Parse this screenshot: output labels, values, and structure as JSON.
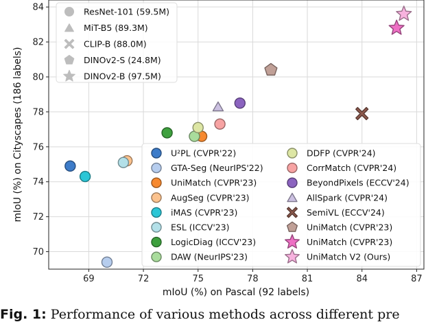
{
  "chart_data": {
    "type": "scatter",
    "xlabel": "mIoU (%) on Pascal (92 labels)",
    "ylabel": "mIoU (%) on Cityscapes (186 labels)",
    "xlim": [
      66.8,
      87.4
    ],
    "ylim": [
      69.0,
      84.4
    ],
    "xticks": [
      69,
      72,
      75,
      78,
      81,
      84,
      87
    ],
    "yticks": [
      70,
      72,
      74,
      76,
      78,
      80,
      82,
      84
    ],
    "grid": true,
    "legend_backbones": [
      {
        "label": "ResNet-101 (59.5M)",
        "marker": "circle"
      },
      {
        "label": "MiT-B5 (89.3M)",
        "marker": "triangle"
      },
      {
        "label": "CLIP-B (88.0M)",
        "marker": "x"
      },
      {
        "label": "DINOv2-S (24.8M)",
        "marker": "pentagon"
      },
      {
        "label": "DINOv2-B (97.5M)",
        "marker": "star"
      }
    ],
    "legend_methods": [
      {
        "label": "U²PL (CVPR'22)",
        "color": "#3d7cc9",
        "marker": "circle"
      },
      {
        "label": "GTA-Seg (NeurIPS'22)",
        "color": "#b6cdee",
        "marker": "circle"
      },
      {
        "label": "UniMatch (CVPR'23)",
        "color": "#f7892f",
        "marker": "circle"
      },
      {
        "label": "AugSeg (CVPR'23)",
        "color": "#fbc28e",
        "marker": "circle"
      },
      {
        "label": "iMAS (CVPR'23)",
        "color": "#2cc6d6",
        "marker": "circle"
      },
      {
        "label": "ESL (ICCV'23)",
        "color": "#b3e0e8",
        "marker": "circle"
      },
      {
        "label": "LogicDiag (ICCV'23)",
        "color": "#3ea03e",
        "marker": "circle"
      },
      {
        "label": "DAW (NeurIPS'23)",
        "color": "#a9dc9c",
        "marker": "circle"
      },
      {
        "label": "DDFP (CVPR'24)",
        "color": "#dde6a4",
        "marker": "circle"
      },
      {
        "label": "CorrMatch (CVPR'24)",
        "color": "#f7a3a3",
        "marker": "circle"
      },
      {
        "label": "BeyondPixels (ECCV'24)",
        "color": "#8b63bf",
        "marker": "circle"
      },
      {
        "label": "AllSpark (CVPR'24)",
        "color": "#cbc0e1",
        "marker": "triangle"
      },
      {
        "label": "SemiVL (ECCV'24)",
        "color": "#8e5a4e",
        "marker": "x"
      },
      {
        "label": "UniMatch (CVPR'23)",
        "color": "#c0a097",
        "marker": "pentagon"
      },
      {
        "label": "UniMatch (CVPR'23)",
        "color": "#ee6fc4",
        "marker": "star"
      },
      {
        "label": "UniMatch V2 (Ours)",
        "color": "#f7b2de",
        "marker": "star"
      }
    ],
    "points": [
      {
        "name": "U²PL",
        "x": 67.98,
        "y": 74.9,
        "color": "#3d7cc9",
        "marker": "circle"
      },
      {
        "name": "GTA-Seg",
        "x": 70.0,
        "y": 69.4,
        "color": "#b6cdee",
        "marker": "circle"
      },
      {
        "name": "UniMatch",
        "x": 75.2,
        "y": 76.6,
        "color": "#f7892f",
        "marker": "circle"
      },
      {
        "name": "AugSeg",
        "x": 71.1,
        "y": 75.2,
        "color": "#fbc28e",
        "marker": "circle"
      },
      {
        "name": "iMAS",
        "x": 68.8,
        "y": 74.3,
        "color": "#2cc6d6",
        "marker": "circle"
      },
      {
        "name": "ESL",
        "x": 70.9,
        "y": 75.1,
        "color": "#b3e0e8",
        "marker": "circle"
      },
      {
        "name": "LogicDiag",
        "x": 73.3,
        "y": 76.8,
        "color": "#3ea03e",
        "marker": "circle"
      },
      {
        "name": "DAW",
        "x": 74.8,
        "y": 76.6,
        "color": "#a9dc9c",
        "marker": "circle"
      },
      {
        "name": "DDFP",
        "x": 75.0,
        "y": 77.1,
        "color": "#dde6a4",
        "marker": "circle"
      },
      {
        "name": "CorrMatch",
        "x": 76.2,
        "y": 77.3,
        "color": "#f7a3a3",
        "marker": "circle"
      },
      {
        "name": "BeyondPixels",
        "x": 77.3,
        "y": 78.5,
        "color": "#8b63bf",
        "marker": "circle"
      },
      {
        "name": "AllSpark",
        "x": 76.1,
        "y": 78.3,
        "color": "#cbc0e1",
        "marker": "triangle"
      },
      {
        "name": "SemiVL",
        "x": 84.0,
        "y": 77.9,
        "color": "#8e5a4e",
        "marker": "x"
      },
      {
        "name": "UniMatch (DINOv2-S)",
        "x": 79.0,
        "y": 80.4,
        "color": "#c0a097",
        "marker": "pentagon"
      },
      {
        "name": "UniMatch (DINOv2-B)",
        "x": 85.9,
        "y": 82.8,
        "color": "#ee6fc4",
        "marker": "star"
      },
      {
        "name": "UniMatch V2 (Ours)",
        "x": 86.3,
        "y": 83.6,
        "color": "#f7b2de",
        "marker": "star"
      }
    ]
  },
  "caption": {
    "label": "Fig. 1:",
    "text": "Performance of various methods across different pre"
  }
}
